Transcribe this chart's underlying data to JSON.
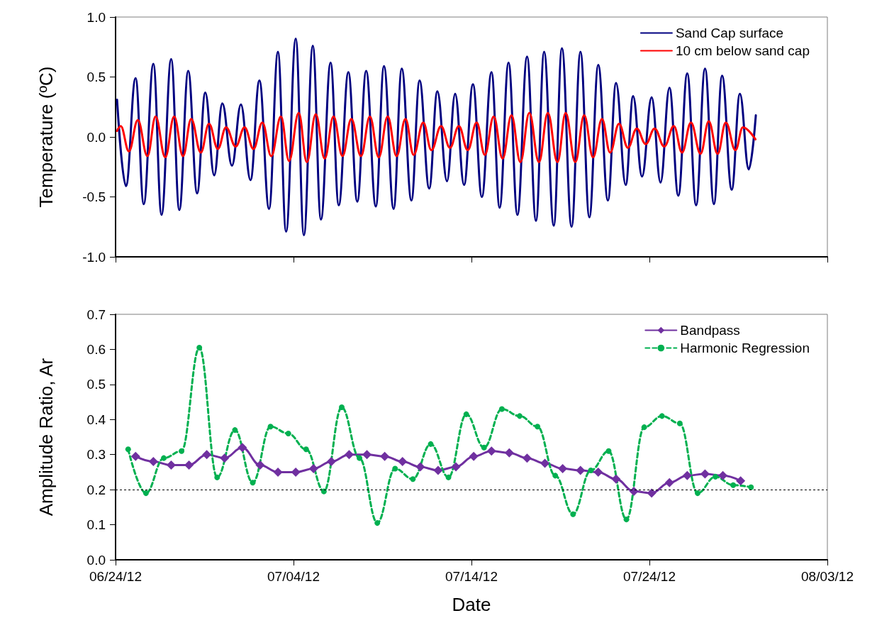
{
  "chart_data": [
    {
      "type": "line",
      "ylabel": "Temperature (ºC)",
      "xlim": [
        "2012-06-24",
        "2012-08-03"
      ],
      "xticks": [
        {
          "value": "2012-06-24",
          "label": null
        },
        {
          "value": "2012-07-04",
          "label": null
        },
        {
          "value": "2012-07-14",
          "label": null
        },
        {
          "value": "2012-07-24",
          "label": null
        },
        {
          "value": "2012-08-03",
          "label": null
        }
      ],
      "ylim": [
        -1,
        1
      ],
      "yticks": [
        {
          "value": -1,
          "label": "-1.0"
        },
        {
          "value": -0.5,
          "label": "-0.5"
        },
        {
          "value": 0,
          "label": "0.0"
        },
        {
          "value": 0.5,
          "label": "0.5"
        },
        {
          "value": 1,
          "label": "1.0"
        }
      ],
      "tick_labels": "y",
      "grid": false,
      "legend": "top right",
      "marker": "none",
      "line_style": "solid",
      "series": [
        {
          "name": "Sand Cap surface",
          "color": "#000080",
          "x": [
            "2012-06-24T02:00",
            "2012-06-24T14:00",
            "2012-06-25T03:00",
            "2012-06-25T14:00",
            "2012-06-26T03:00",
            "2012-06-26T14:00",
            "2012-06-27T03:00",
            "2012-06-27T14:00",
            "2012-06-28T02:00",
            "2012-06-28T14:00",
            "2012-06-29T01:00",
            "2012-06-29T13:00",
            "2012-06-30T00:00",
            "2012-06-30T13:00",
            "2012-07-01T01:00",
            "2012-07-01T14:00",
            "2012-07-02T02:00",
            "2012-07-02T15:00",
            "2012-07-03T03:00",
            "2012-07-03T14:00",
            "2012-07-04T03:00",
            "2012-07-04T14:00",
            "2012-07-05T02:00",
            "2012-07-05T13:00",
            "2012-07-06T02:00",
            "2012-07-06T13:00",
            "2012-07-07T02:00",
            "2012-07-07T14:00",
            "2012-07-08T02:00",
            "2012-07-08T15:00",
            "2012-07-09T02:00",
            "2012-07-09T15:00",
            "2012-07-10T02:00",
            "2012-07-10T15:00",
            "2012-07-11T02:00",
            "2012-07-11T15:00",
            "2012-07-12T02:00",
            "2012-07-12T15:00",
            "2012-07-13T02:00",
            "2012-07-13T14:00",
            "2012-07-14T02:00",
            "2012-07-14T14:00",
            "2012-07-15T03:00",
            "2012-07-15T14:00",
            "2012-07-16T02:00",
            "2012-07-16T14:00",
            "2012-07-17T03:00",
            "2012-07-17T15:00",
            "2012-07-18T02:00",
            "2012-07-18T15:00",
            "2012-07-19T02:00",
            "2012-07-19T15:00",
            "2012-07-20T03:00",
            "2012-07-20T15:00",
            "2012-07-21T03:00",
            "2012-07-21T16:00",
            "2012-07-22T03:00",
            "2012-07-22T16:00",
            "2012-07-23T02:00",
            "2012-07-23T14:00",
            "2012-07-24T03:00",
            "2012-07-24T15:00",
            "2012-07-25T03:00",
            "2012-07-25T15:00",
            "2012-07-26T03:00",
            "2012-07-26T15:00",
            "2012-07-27T03:00",
            "2012-07-27T15:00",
            "2012-07-28T02:00",
            "2012-07-28T15:00",
            "2012-07-29T02:00",
            "2012-07-29T14:00",
            "2012-07-29T23:30"
          ],
          "values": [
            0.31,
            -0.41,
            0.49,
            -0.56,
            0.61,
            -0.65,
            0.65,
            -0.61,
            0.55,
            -0.47,
            0.37,
            -0.32,
            0.28,
            -0.24,
            0.27,
            -0.36,
            0.47,
            -0.6,
            0.71,
            -0.79,
            0.82,
            -0.82,
            0.76,
            -0.69,
            0.62,
            -0.57,
            0.54,
            -0.54,
            0.55,
            -0.58,
            0.59,
            -0.6,
            0.57,
            -0.53,
            0.47,
            -0.43,
            0.38,
            -0.37,
            0.36,
            -0.4,
            0.44,
            -0.5,
            0.54,
            -0.59,
            0.62,
            -0.65,
            0.67,
            -0.7,
            0.71,
            -0.74,
            0.74,
            -0.75,
            0.71,
            -0.67,
            0.6,
            -0.53,
            0.45,
            -0.4,
            0.34,
            -0.33,
            0.33,
            -0.38,
            0.41,
            -0.49,
            0.53,
            -0.57,
            0.57,
            -0.56,
            0.51,
            -0.44,
            0.36,
            -0.27,
            0.18
          ]
        },
        {
          "name": "10 cm below sand cap",
          "color": "#ff0000",
          "x": [
            "2012-06-24T02:00",
            "2012-06-24T07:00",
            "2012-06-24T18:00",
            "2012-06-25T06:00",
            "2012-06-25T19:00",
            "2012-06-26T06:00",
            "2012-06-26T19:00",
            "2012-06-27T07:00",
            "2012-06-27T19:00",
            "2012-06-28T06:00",
            "2012-06-28T19:00",
            "2012-06-29T06:00",
            "2012-06-29T18:00",
            "2012-06-30T05:00",
            "2012-06-30T18:00",
            "2012-07-01T06:00",
            "2012-07-01T18:00",
            "2012-07-02T06:00",
            "2012-07-02T18:00",
            "2012-07-03T07:00",
            "2012-07-03T18:00",
            "2012-07-04T07:00",
            "2012-07-04T18:00",
            "2012-07-05T06:00",
            "2012-07-05T18:00",
            "2012-07-06T06:00",
            "2012-07-06T18:00",
            "2012-07-07T06:00",
            "2012-07-07T19:00",
            "2012-07-08T07:00",
            "2012-07-08T19:00",
            "2012-07-09T07:00",
            "2012-07-09T19:00",
            "2012-07-10T07:00",
            "2012-07-10T18:00",
            "2012-07-11T07:00",
            "2012-07-11T18:00",
            "2012-07-12T07:00",
            "2012-07-12T19:00",
            "2012-07-13T07:00",
            "2012-07-13T19:00",
            "2012-07-14T07:00",
            "2012-07-14T18:00",
            "2012-07-15T06:00",
            "2012-07-15T18:00",
            "2012-07-16T06:00",
            "2012-07-16T18:00",
            "2012-07-17T06:00",
            "2012-07-17T19:00",
            "2012-07-18T07:00",
            "2012-07-18T20:00",
            "2012-07-19T07:00",
            "2012-07-19T20:00",
            "2012-07-20T08:00",
            "2012-07-20T20:00",
            "2012-07-21T08:00",
            "2012-07-21T19:00",
            "2012-07-22T07:00",
            "2012-07-22T19:00",
            "2012-07-23T07:00",
            "2012-07-23T19:00",
            "2012-07-24T07:00",
            "2012-07-24T20:00",
            "2012-07-25T09:00",
            "2012-07-25T20:00",
            "2012-07-26T08:00",
            "2012-07-26T21:00",
            "2012-07-27T08:00",
            "2012-07-27T20:00",
            "2012-07-28T07:00",
            "2012-07-28T20:00",
            "2012-07-29T06:00",
            "2012-07-29T23:00"
          ],
          "values": [
            0.05,
            0.09,
            -0.12,
            0.14,
            -0.16,
            0.17,
            -0.17,
            0.17,
            -0.16,
            0.15,
            -0.13,
            0.11,
            -0.1,
            0.08,
            -0.08,
            0.08,
            -0.1,
            0.12,
            -0.16,
            0.17,
            -0.2,
            0.2,
            -0.21,
            0.19,
            -0.18,
            0.17,
            -0.16,
            0.15,
            -0.16,
            0.17,
            -0.17,
            0.17,
            -0.16,
            0.15,
            -0.15,
            0.12,
            -0.11,
            0.09,
            -0.09,
            0.09,
            -0.11,
            0.12,
            -0.15,
            0.17,
            -0.18,
            0.18,
            -0.21,
            0.2,
            -0.21,
            0.2,
            -0.21,
            0.2,
            -0.21,
            0.18,
            -0.17,
            0.15,
            -0.13,
            0.11,
            -0.09,
            0.07,
            -0.06,
            0.07,
            -0.08,
            0.09,
            -0.13,
            0.12,
            -0.14,
            0.13,
            -0.14,
            0.12,
            -0.11,
            0.08,
            -0.02
          ]
        }
      ]
    },
    {
      "type": "line",
      "xlabel": "Date",
      "ylabel": "Amplitude Ratio, Ar",
      "xlim": [
        "2012-06-24",
        "2012-08-03"
      ],
      "xticks": [
        {
          "value": "2012-06-24",
          "label": "06/24/12"
        },
        {
          "value": "2012-07-04",
          "label": "07/04/12"
        },
        {
          "value": "2012-07-14",
          "label": "07/14/12"
        },
        {
          "value": "2012-07-24",
          "label": "07/24/12"
        },
        {
          "value": "2012-08-03",
          "label": "08/03/12"
        }
      ],
      "ylim": [
        0,
        0.7
      ],
      "yticks": [
        {
          "value": 0,
          "label": "0.0"
        },
        {
          "value": 0.1,
          "label": "0.1"
        },
        {
          "value": 0.2,
          "label": "0.2"
        },
        {
          "value": 0.3,
          "label": "0.3"
        },
        {
          "value": 0.4,
          "label": "0.4"
        },
        {
          "value": 0.5,
          "label": "0.5"
        },
        {
          "value": 0.6,
          "label": "0.6"
        },
        {
          "value": 0.7,
          "label": "0.7"
        }
      ],
      "grid": false,
      "legend": "top right",
      "ref_lines": [
        {
          "axis": "y",
          "value": 0.2,
          "color": "#000000",
          "line_style": "dashed"
        }
      ],
      "series": [
        {
          "name": "Bandpass",
          "color": "#7030a0",
          "marker": "diamond",
          "line_style": "solid",
          "x": [
            "2012-06-25T03:00",
            "2012-06-26T03:00",
            "2012-06-27T03:00",
            "2012-06-28T03:00",
            "2012-06-29T03:00",
            "2012-06-30T03:00",
            "2012-07-01T03:00",
            "2012-07-02T03:00",
            "2012-07-03T03:00",
            "2012-07-04T03:00",
            "2012-07-05T03:00",
            "2012-07-06T03:00",
            "2012-07-07T03:00",
            "2012-07-08T03:00",
            "2012-07-09T03:00",
            "2012-07-10T03:00",
            "2012-07-11T03:00",
            "2012-07-12T03:00",
            "2012-07-13T03:00",
            "2012-07-14T03:00",
            "2012-07-15T03:00",
            "2012-07-16T03:00",
            "2012-07-17T03:00",
            "2012-07-18T03:00",
            "2012-07-19T03:00",
            "2012-07-20T03:00",
            "2012-07-21T03:00",
            "2012-07-22T03:00",
            "2012-07-23T03:00",
            "2012-07-24T03:00",
            "2012-07-25T03:00",
            "2012-07-26T03:00",
            "2012-07-27T03:00",
            "2012-07-28T03:00",
            "2012-07-29T03:00"
          ],
          "values": [
            0.295,
            0.28,
            0.27,
            0.27,
            0.3,
            0.29,
            0.32,
            0.27,
            0.25,
            0.25,
            0.26,
            0.28,
            0.3,
            0.3,
            0.295,
            0.28,
            0.265,
            0.255,
            0.265,
            0.295,
            0.31,
            0.305,
            0.29,
            0.275,
            0.26,
            0.255,
            0.25,
            0.23,
            0.195,
            0.19,
            0.22,
            0.24,
            0.245,
            0.24,
            0.225
          ]
        },
        {
          "name": "Harmonic Regression",
          "color": "#00b050",
          "marker": "circle",
          "line_style": "dashed",
          "x": [
            "2012-06-24T17:00",
            "2012-06-25T17:00",
            "2012-06-26T17:00",
            "2012-06-27T17:00",
            "2012-06-28T17:00",
            "2012-06-29T17:00",
            "2012-06-30T17:00",
            "2012-07-01T17:00",
            "2012-07-02T17:00",
            "2012-07-03T17:00",
            "2012-07-04T17:00",
            "2012-07-05T17:00",
            "2012-07-06T17:00",
            "2012-07-07T17:00",
            "2012-07-08T17:00",
            "2012-07-09T17:00",
            "2012-07-10T17:00",
            "2012-07-11T17:00",
            "2012-07-12T17:00",
            "2012-07-13T17:00",
            "2012-07-14T17:00",
            "2012-07-15T17:00",
            "2012-07-16T17:00",
            "2012-07-17T17:00",
            "2012-07-18T17:00",
            "2012-07-19T17:00",
            "2012-07-20T17:00",
            "2012-07-21T17:00",
            "2012-07-22T17:00",
            "2012-07-23T17:00",
            "2012-07-24T17:00",
            "2012-07-25T17:00",
            "2012-07-26T17:00",
            "2012-07-27T17:00",
            "2012-07-28T17:00",
            "2012-07-29T17:00"
          ],
          "values": [
            0.315,
            0.19,
            0.29,
            0.31,
            0.605,
            0.235,
            0.37,
            0.22,
            0.38,
            0.36,
            0.315,
            0.195,
            0.435,
            0.29,
            0.105,
            0.26,
            0.23,
            0.33,
            0.235,
            0.415,
            0.32,
            0.43,
            0.41,
            0.38,
            0.24,
            0.13,
            0.255,
            0.31,
            0.115,
            0.378,
            0.41,
            0.389,
            0.19,
            0.237,
            0.213,
            0.207
          ]
        }
      ]
    }
  ]
}
